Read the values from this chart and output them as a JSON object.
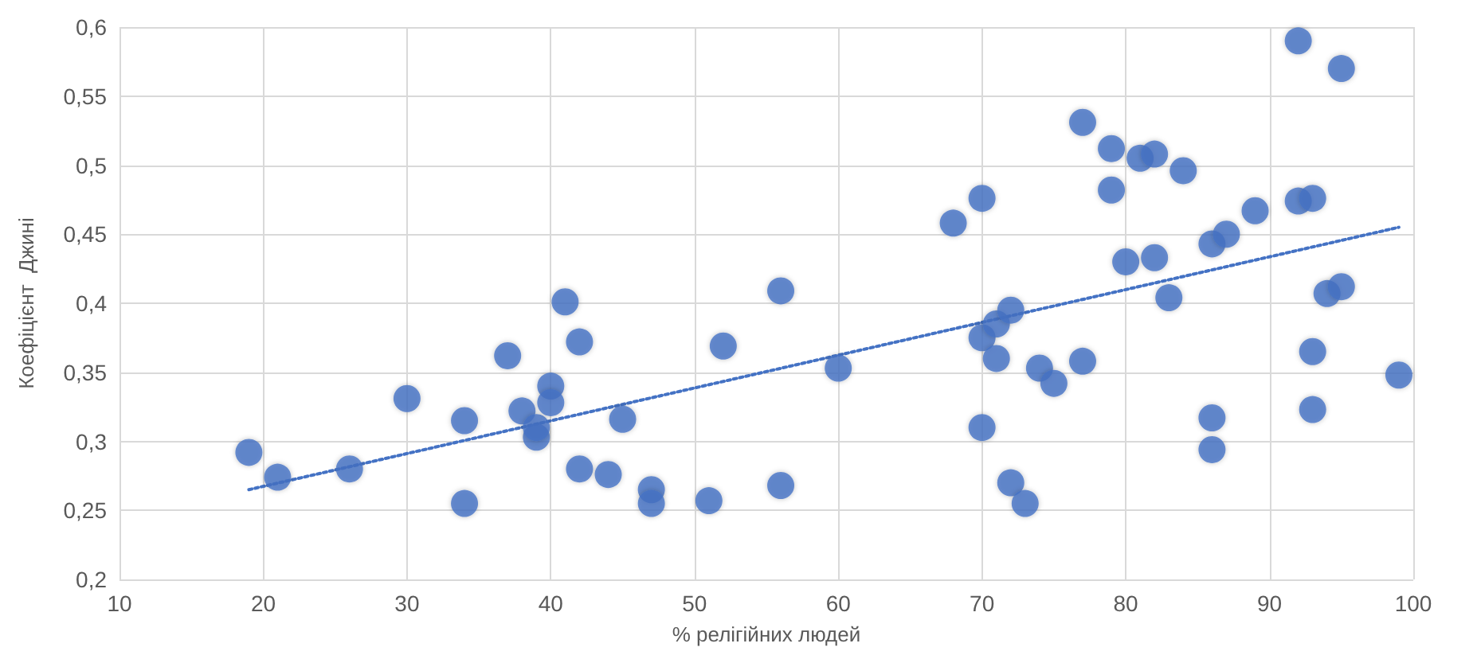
{
  "chart_data": {
    "type": "scatter",
    "xlabel": "% релігійних людей",
    "ylabel": "Коефіцієнт  Джині",
    "xlim": [
      10,
      100
    ],
    "xticks": [
      10,
      20,
      30,
      40,
      50,
      60,
      70,
      80,
      90,
      100
    ],
    "ylim": [
      0.2,
      0.6
    ],
    "yticks": [
      {
        "value": 0.2,
        "label": "0,2"
      },
      {
        "value": 0.25,
        "label": "0,25"
      },
      {
        "value": 0.3,
        "label": "0,3"
      },
      {
        "value": 0.35,
        "label": "0,35"
      },
      {
        "value": 0.4,
        "label": "0,4"
      },
      {
        "value": 0.45,
        "label": "0,45"
      },
      {
        "value": 0.5,
        "label": "0,5"
      },
      {
        "value": 0.55,
        "label": "0,55"
      },
      {
        "value": 0.6,
        "label": "0,6"
      }
    ],
    "grid": true,
    "marker": "circle",
    "series": [
      {
        "color": "#4472c4",
        "x": [
          19,
          21,
          26,
          30,
          34,
          34,
          37,
          38,
          39,
          39,
          40,
          40,
          41,
          42,
          42,
          44,
          45,
          47,
          47,
          51,
          52,
          56,
          56,
          60,
          68,
          70,
          70,
          70,
          71,
          71,
          72,
          72,
          73,
          74,
          75,
          77,
          77,
          79,
          79,
          80,
          81,
          82,
          82,
          83,
          84,
          86,
          86,
          86,
          87,
          89,
          92,
          92,
          93,
          93,
          93,
          94,
          95,
          95,
          99
        ],
        "values": [
          0.292,
          0.274,
          0.28,
          0.331,
          0.315,
          0.255,
          0.362,
          0.322,
          0.303,
          0.31,
          0.34,
          0.328,
          0.401,
          0.372,
          0.28,
          0.276,
          0.316,
          0.265,
          0.255,
          0.257,
          0.369,
          0.409,
          0.268,
          0.353,
          0.458,
          0.476,
          0.375,
          0.31,
          0.385,
          0.36,
          0.395,
          0.27,
          0.255,
          0.353,
          0.342,
          0.531,
          0.358,
          0.512,
          0.482,
          0.43,
          0.505,
          0.508,
          0.433,
          0.404,
          0.496,
          0.443,
          0.317,
          0.294,
          0.45,
          0.467,
          0.59,
          0.474,
          0.476,
          0.365,
          0.323,
          0.407,
          0.412,
          0.57,
          0.348
        ]
      },
      {
        "type": "line",
        "color": "#4472c4",
        "line_style": "dotted",
        "marker": "none",
        "x": [
          19,
          99
        ],
        "values": [
          0.265,
          0.455
        ]
      }
    ]
  }
}
